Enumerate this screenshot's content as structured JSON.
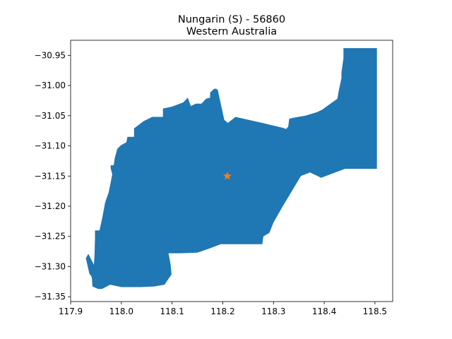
{
  "figure": {
    "title_line1": "Nungarin (S) - 56860",
    "title_line2": "Western Australia"
  },
  "chart_data": {
    "type": "map",
    "xlim": [
      117.9,
      118.535
    ],
    "ylim": [
      -31.358,
      -30.925
    ],
    "x_ticks": [
      117.9,
      118.0,
      118.1,
      118.2,
      118.3,
      118.4,
      118.5
    ],
    "x_tick_labels": [
      "117.9",
      "118.0",
      "118.1",
      "118.2",
      "118.3",
      "118.4",
      "118.5"
    ],
    "y_ticks": [
      -30.95,
      -31.0,
      -31.05,
      -31.1,
      -31.15,
      -31.2,
      -31.25,
      -31.3,
      -31.35
    ],
    "y_tick_labels": [
      "−30.95",
      "−31.00",
      "−31.05",
      "−31.10",
      "−31.15",
      "−31.20",
      "−31.25",
      "−31.30",
      "−31.35"
    ],
    "region": {
      "fill_color": "#1f77b4",
      "outline": [
        [
          118.438,
          -30.938
        ],
        [
          118.504,
          -30.938
        ],
        [
          118.504,
          -31.138
        ],
        [
          118.441,
          -31.138
        ],
        [
          118.394,
          -31.153
        ],
        [
          118.372,
          -31.144
        ],
        [
          118.354,
          -31.15
        ],
        [
          118.332,
          -31.181
        ],
        [
          118.319,
          -31.199
        ],
        [
          118.3,
          -31.227
        ],
        [
          118.292,
          -31.244
        ],
        [
          118.28,
          -31.25
        ],
        [
          118.278,
          -31.263
        ],
        [
          118.196,
          -31.263
        ],
        [
          118.174,
          -31.27
        ],
        [
          118.15,
          -31.277
        ],
        [
          118.115,
          -31.278
        ],
        [
          118.093,
          -31.278
        ],
        [
          118.097,
          -31.296
        ],
        [
          118.099,
          -31.313
        ],
        [
          118.085,
          -31.33
        ],
        [
          118.065,
          -31.333
        ],
        [
          118.038,
          -31.334
        ],
        [
          118.0,
          -31.334
        ],
        [
          117.978,
          -31.33
        ],
        [
          117.962,
          -31.337
        ],
        [
          117.954,
          -31.337
        ],
        [
          117.943,
          -31.333
        ],
        [
          117.942,
          -31.32
        ],
        [
          117.941,
          -31.316
        ],
        [
          117.937,
          -31.312
        ],
        [
          117.93,
          -31.286
        ],
        [
          117.935,
          -31.279
        ],
        [
          117.946,
          -31.297
        ],
        [
          117.947,
          -31.281
        ],
        [
          117.948,
          -31.253
        ],
        [
          117.948,
          -31.24
        ],
        [
          117.957,
          -31.24
        ],
        [
          117.963,
          -31.217
        ],
        [
          117.968,
          -31.194
        ],
        [
          117.975,
          -31.177
        ],
        [
          117.978,
          -31.165
        ],
        [
          117.982,
          -31.147
        ],
        [
          117.979,
          -31.137
        ],
        [
          117.979,
          -31.132
        ],
        [
          117.985,
          -31.132
        ],
        [
          117.987,
          -31.12
        ],
        [
          117.992,
          -31.105
        ],
        [
          117.999,
          -31.099
        ],
        [
          118.01,
          -31.094
        ],
        [
          118.012,
          -31.085
        ],
        [
          118.025,
          -31.085
        ],
        [
          118.025,
          -31.071
        ],
        [
          118.044,
          -31.059
        ],
        [
          118.061,
          -31.052
        ],
        [
          118.082,
          -31.052
        ],
        [
          118.082,
          -31.038
        ],
        [
          118.1,
          -31.035
        ],
        [
          118.122,
          -31.028
        ],
        [
          118.131,
          -31.02
        ],
        [
          118.137,
          -31.034
        ],
        [
          118.147,
          -31.03
        ],
        [
          118.158,
          -31.03
        ],
        [
          118.167,
          -31.022
        ],
        [
          118.175,
          -31.02
        ],
        [
          118.175,
          -31.012
        ],
        [
          118.182,
          -31.006
        ],
        [
          118.186,
          -31.005
        ],
        [
          118.19,
          -31.007
        ],
        [
          118.203,
          -31.057
        ],
        [
          118.21,
          -31.062
        ],
        [
          118.225,
          -31.052
        ],
        [
          118.283,
          -31.063
        ],
        [
          118.318,
          -31.07
        ],
        [
          118.325,
          -31.072
        ],
        [
          118.329,
          -31.068
        ],
        [
          118.331,
          -31.055
        ],
        [
          118.342,
          -31.053
        ],
        [
          118.363,
          -31.05
        ],
        [
          118.386,
          -31.044
        ],
        [
          118.396,
          -31.04
        ],
        [
          118.414,
          -31.029
        ],
        [
          118.426,
          -31.022
        ],
        [
          118.429,
          -31.007
        ],
        [
          118.434,
          -30.988
        ],
        [
          118.434,
          -30.978
        ],
        [
          118.438,
          -30.955
        ]
      ]
    },
    "marker": {
      "symbol": "star",
      "x": 118.209,
      "y": -31.15,
      "color": "#ff7f0e"
    },
    "grid": false,
    "legend": "none"
  }
}
